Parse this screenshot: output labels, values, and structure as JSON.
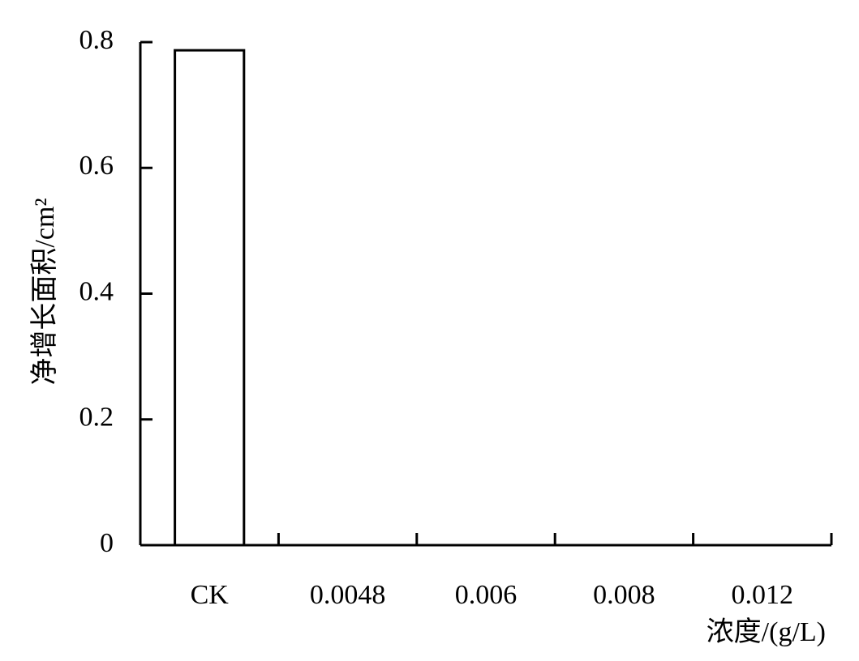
{
  "chart_data": {
    "type": "bar",
    "y_label": "净增长面积/cm²",
    "x_label": "浓度/(g/L)",
    "categories": [
      "CK",
      "0.0048",
      "0.006",
      "0.008",
      "0.012"
    ],
    "values": [
      0.787,
      0,
      0,
      0,
      0
    ],
    "color": "#ffffff",
    "edge_color": "#000000",
    "ylim": [
      0,
      0.8
    ],
    "yticks": [
      0,
      0.2,
      0.4,
      0.6,
      0.8
    ],
    "grid": false
  }
}
